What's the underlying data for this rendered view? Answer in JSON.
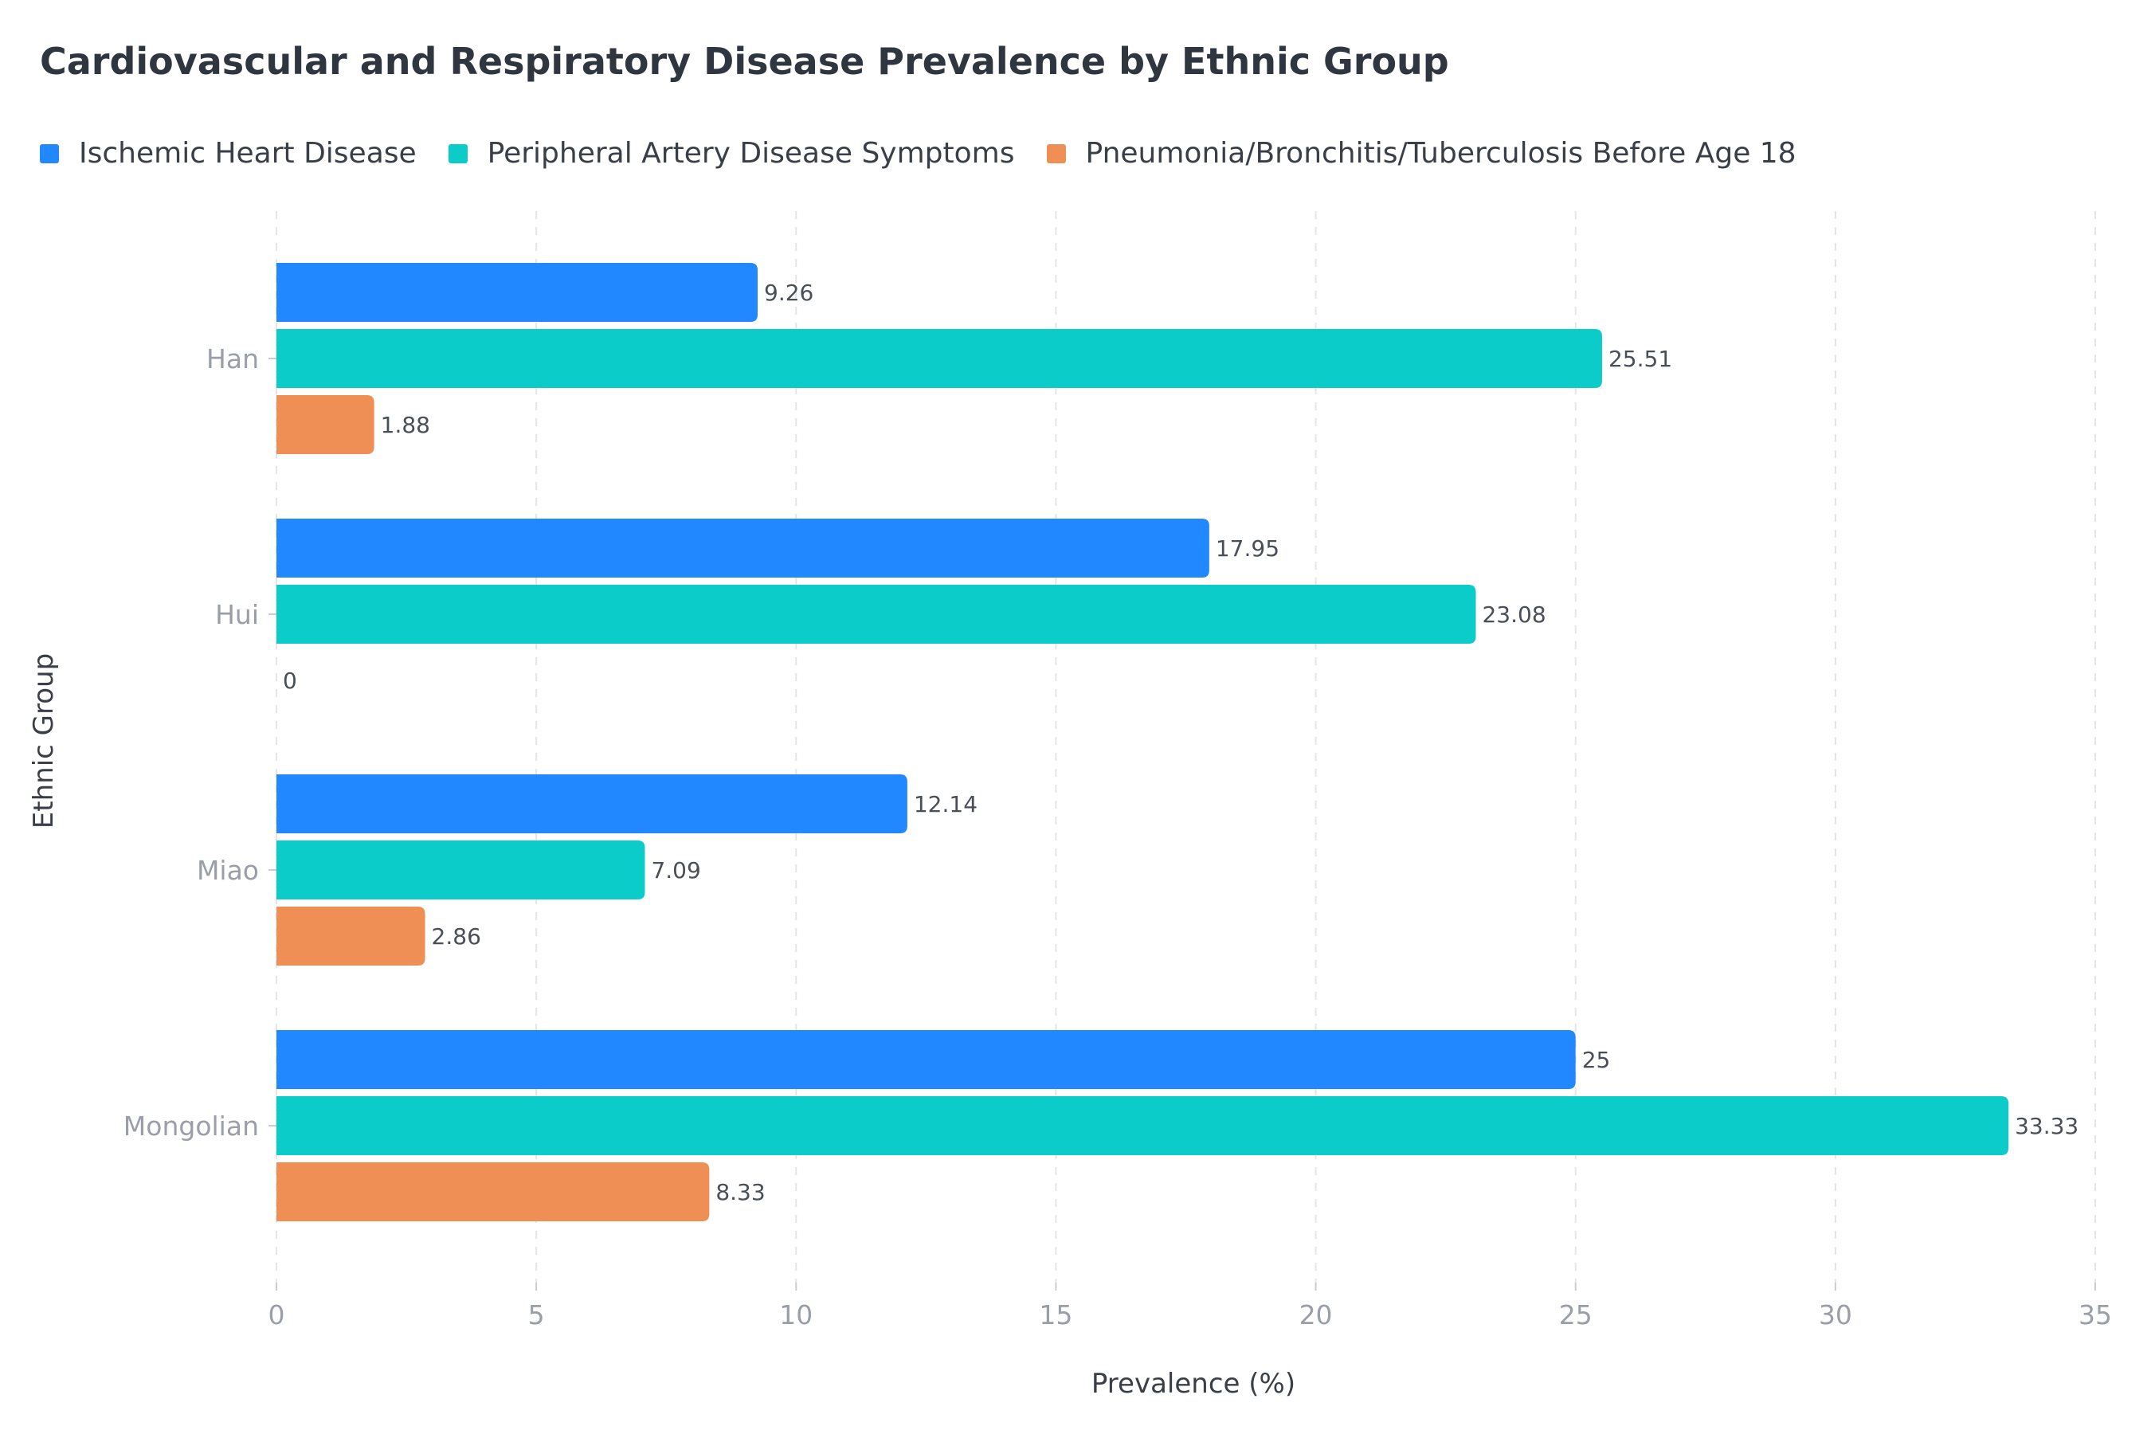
{
  "chart_data": {
    "type": "bar",
    "orientation": "horizontal",
    "title": "Cardiovascular and Respiratory Disease Prevalence by Ethnic Group",
    "xlabel": "Prevalence (%)",
    "ylabel": "Ethnic Group",
    "categories": [
      "Han",
      "Hui",
      "Miao",
      "Mongolian"
    ],
    "series": [
      {
        "name": "Ischemic Heart Disease",
        "color": "#2288ff",
        "values": [
          9.26,
          17.95,
          12.14,
          25
        ]
      },
      {
        "name": "Peripheral Artery Disease Symptoms",
        "color": "#0cccca",
        "values": [
          25.51,
          23.08,
          7.09,
          33.33
        ]
      },
      {
        "name": "Pneumonia/Bronchitis/Tuberculosis Before Age 18",
        "color": "#f08f55",
        "values": [
          1.88,
          0,
          2.86,
          8.33
        ]
      }
    ],
    "xlim": [
      0,
      35
    ],
    "xticks": [
      0,
      5,
      10,
      15,
      20,
      25,
      30,
      35
    ],
    "grid": "vertical dashed",
    "legend_position": "top-left"
  }
}
